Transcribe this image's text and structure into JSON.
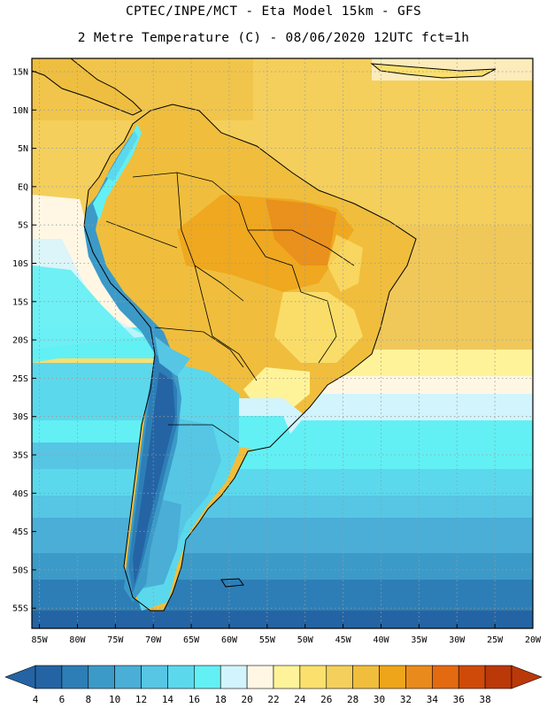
{
  "header": {
    "line1": "CPTEC/INPE/MCT -  Eta Model 15km - GFS",
    "line2": "2 Metre Temperature (C) - 08/06/2020 12UTC fct=1h"
  },
  "axes": {
    "lat_labels": [
      "15N",
      "10N",
      "5N",
      "EQ",
      "5S",
      "10S",
      "15S",
      "20S",
      "25S",
      "30S",
      "35S",
      "40S",
      "45S",
      "50S",
      "55S"
    ],
    "lon_labels": [
      "85W",
      "80W",
      "75W",
      "70W",
      "65W",
      "60W",
      "55W",
      "50W",
      "45W",
      "40W",
      "35W",
      "30W",
      "25W",
      "20W"
    ]
  },
  "colorbar": {
    "labels": [
      "4",
      "6",
      "8",
      "10",
      "12",
      "14",
      "16",
      "18",
      "20",
      "22",
      "24",
      "26",
      "28",
      "30",
      "32",
      "34",
      "36",
      "38"
    ],
    "colors": [
      "#2464a4",
      "#2d7eb6",
      "#3c9ac8",
      "#4aaed7",
      "#56c6e4",
      "#5cd8ec",
      "#62f0f4",
      "#d2f4fc",
      "#fff7e4",
      "#fff39a",
      "#fbe06e",
      "#f4cf5c",
      "#f0be3c",
      "#eea51a",
      "#e98a1c",
      "#e36a10",
      "#cf4a08",
      "#bb3808"
    ]
  },
  "colors": {
    "frame": "#000000",
    "grid": "#9a9a9a"
  }
}
